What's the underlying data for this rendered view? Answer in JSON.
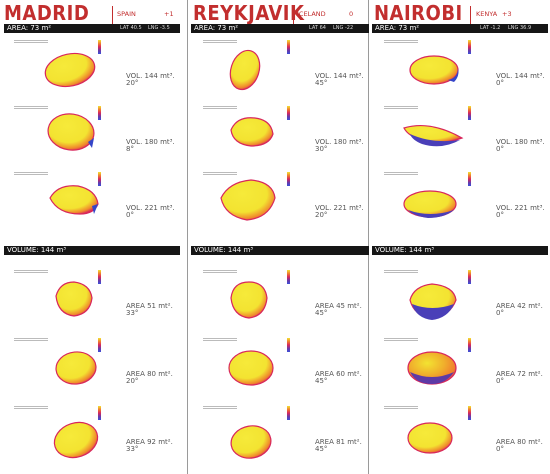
{
  "columns": [
    {
      "city": "MADRID",
      "country": "SPAIN",
      "country_number": "+1",
      "top_bar": {
        "label": "AREA: 73 m²",
        "lat": "LAT 40.5",
        "lng": "LNG -3.5"
      },
      "top_cells": [
        {
          "value": "VOL. 144 mt³.",
          "angle": "20°"
        },
        {
          "value": "VOL. 180 mt³.",
          "angle": "8°"
        },
        {
          "value": "VOL. 221 mt³.",
          "angle": "0°"
        }
      ],
      "bottom_bar": {
        "label": "VOLUME: 144 m³"
      },
      "bottom_cells": [
        {
          "value": "AREA 51 mt².",
          "angle": "33°"
        },
        {
          "value": "AREA 80 mt².",
          "angle": "20°"
        },
        {
          "value": "AREA 92 mt².",
          "angle": "33°"
        }
      ]
    },
    {
      "city": "REYKJAVIK",
      "country": "ICELAND",
      "country_number": "0",
      "top_bar": {
        "label": "AREA: 73 m²",
        "lat": "LAT 64",
        "lng": "LNG -22"
      },
      "top_cells": [
        {
          "value": "VOL. 144 mt³.",
          "angle": "45°"
        },
        {
          "value": "VOL. 180 mt³.",
          "angle": "30°"
        },
        {
          "value": "VOL. 221 mt³.",
          "angle": "20°"
        }
      ],
      "bottom_bar": {
        "label": "VOLUME: 144 m³"
      },
      "bottom_cells": [
        {
          "value": "AREA 45 mt².",
          "angle": "45°"
        },
        {
          "value": "AREA 60 mt².",
          "angle": "45°"
        },
        {
          "value": "AREA 81 mt².",
          "angle": "45°"
        }
      ]
    },
    {
      "city": "NAIROBI",
      "country": "KENYA",
      "country_number": "+3",
      "top_bar": {
        "label": "AREA: 73 m²",
        "lat": "LAT -1.2",
        "lng": "LNG 36.9"
      },
      "top_cells": [
        {
          "value": "VOL. 144 mt³.",
          "angle": "0°"
        },
        {
          "value": "VOL. 180 mt³.",
          "angle": "0°"
        },
        {
          "value": "VOL. 221 mt³.",
          "angle": "0°"
        }
      ],
      "bottom_bar": {
        "label": "VOLUME: 144 m³"
      },
      "bottom_cells": [
        {
          "value": "AREA 42 mt².",
          "angle": "0°"
        },
        {
          "value": "AREA 72 mt².",
          "angle": "0°"
        },
        {
          "value": "AREA 80 mt².",
          "angle": "0°"
        }
      ]
    }
  ],
  "colors": {
    "title_red": "#c22e2e",
    "shape_yellow": "#f3e331",
    "shape_orange": "#f0892c",
    "shape_red": "#d8275c",
    "shape_purple": "#5d3aa6",
    "shape_blue": "#3545c8",
    "bar_black": "#161616"
  }
}
